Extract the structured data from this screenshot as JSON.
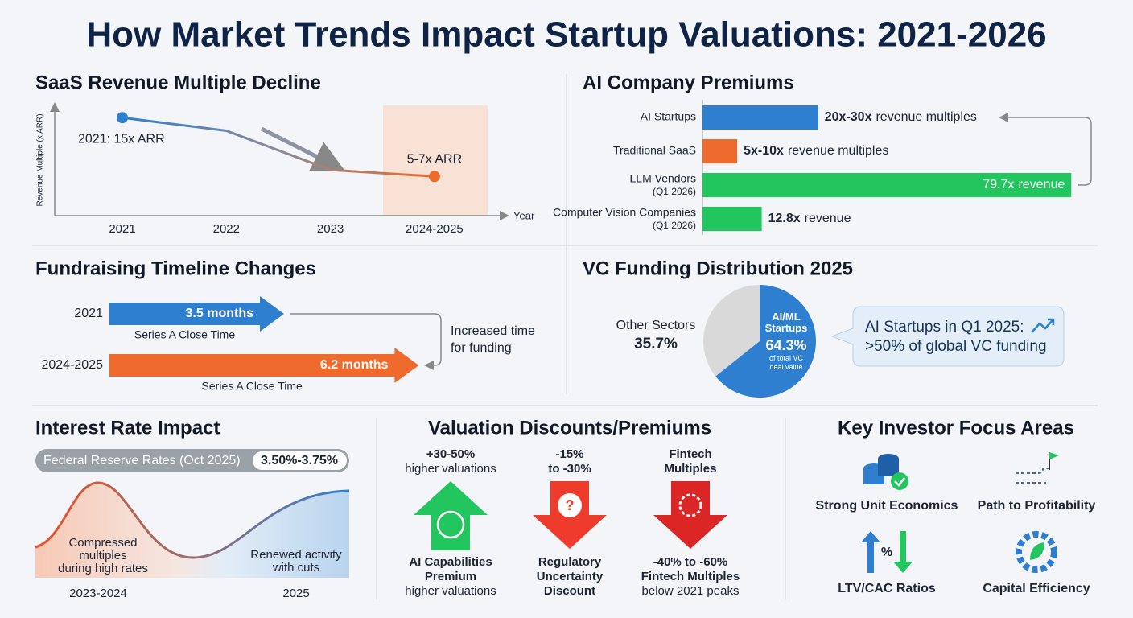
{
  "title": "How Market Trends Impact Startup Valuations: 2021-2026",
  "chart_data": [
    {
      "type": "line",
      "title": "SaaS Revenue Multiple Decline",
      "ylabel": "Revenue Multiple (x ARR)",
      "xlabel": "Year",
      "categories": [
        "2021",
        "2022",
        "2023",
        "2024-2025"
      ],
      "values": [
        15,
        13,
        7,
        6
      ],
      "value_labels": [
        "2021: 15x ARR",
        null,
        null,
        "5-7x ARR"
      ],
      "colors": [
        "#2f7fd0",
        "#ef6a2d"
      ],
      "ylim": [
        0,
        17
      ]
    },
    {
      "type": "bar",
      "title": "AI Company Premiums",
      "categories": [
        "AI Startups",
        "Traditional SaaS",
        "LLM Vendors",
        "Computer Vision Companies"
      ],
      "category_notes": [
        null,
        null,
        "(Q1 2026)",
        "(Q1 2026)"
      ],
      "values": [
        25,
        7.5,
        79.7,
        12.8
      ],
      "value_labels": [
        "20x-30x",
        "5x-10x",
        "79.7x",
        "12.8x"
      ],
      "value_label_suffixes": [
        "revenue multiples",
        "revenue multiples",
        "revenue",
        "revenue"
      ],
      "colors": [
        "#2f7fd0",
        "#ef6a2d",
        "#22c55e",
        "#22c55e"
      ],
      "xlim": [
        0,
        80
      ]
    },
    {
      "type": "bar",
      "title": "Fundraising Timeline Changes",
      "categories": [
        "2021",
        "2024-2025"
      ],
      "values": [
        3.5,
        6.2
      ],
      "value_labels": [
        "3.5 months",
        "6.2 months"
      ],
      "bar_notes": [
        "Series A Close Time",
        "Series A Close Time"
      ],
      "annotation": [
        "Increased time",
        "for funding"
      ],
      "colors": [
        "#2f7fd0",
        "#ef6a2d"
      ],
      "xlim": [
        0,
        7
      ]
    },
    {
      "type": "pie",
      "title": "VC Funding Distribution 2025",
      "categories": [
        "Other Sectors",
        "AI/ML Startups"
      ],
      "values": [
        35.7,
        64.3
      ],
      "value_labels": [
        "35.7%",
        "64.3%"
      ],
      "note": "of total VC deal value",
      "colors": [
        "#d9d9d9",
        "#2f7fd0"
      ],
      "callout": [
        "AI Startups in Q1 2025:",
        ">50% of global VC funding"
      ]
    }
  ],
  "interest_rate": {
    "title": "Interest Rate Impact",
    "rate_label": "Federal Reserve Rates (Oct 2025)",
    "rate_value": "3.50%-3.75%",
    "phases": [
      {
        "label": [
          "Compressed",
          "multiples",
          "during high rates"
        ],
        "period": "2023-2024"
      },
      {
        "label": [
          "Renewed activity",
          "with cuts"
        ],
        "period": "2025"
      }
    ]
  },
  "valuation": {
    "title": "Valuation Discounts/Premiums",
    "items": [
      {
        "top": [
          "+30-50%",
          "higher valuations"
        ],
        "bottom": [
          "AI Capabilities",
          "Premium",
          "higher valuations"
        ]
      },
      {
        "top": [
          "-15%",
          "to -30%"
        ],
        "bottom": [
          "Regulatory",
          "Uncertainty",
          "Discount"
        ]
      },
      {
        "top": [
          "Fintech",
          "Multiples"
        ],
        "bottom": [
          "-40% to -60%",
          "Fintech Multiples",
          "below 2021 peaks"
        ]
      }
    ]
  },
  "focus": {
    "title": "Key Investor Focus Areas",
    "items": [
      "Strong Unit Economics",
      "Path to Profitability",
      "LTV/CAC Ratios",
      "Capital Efficiency"
    ]
  }
}
